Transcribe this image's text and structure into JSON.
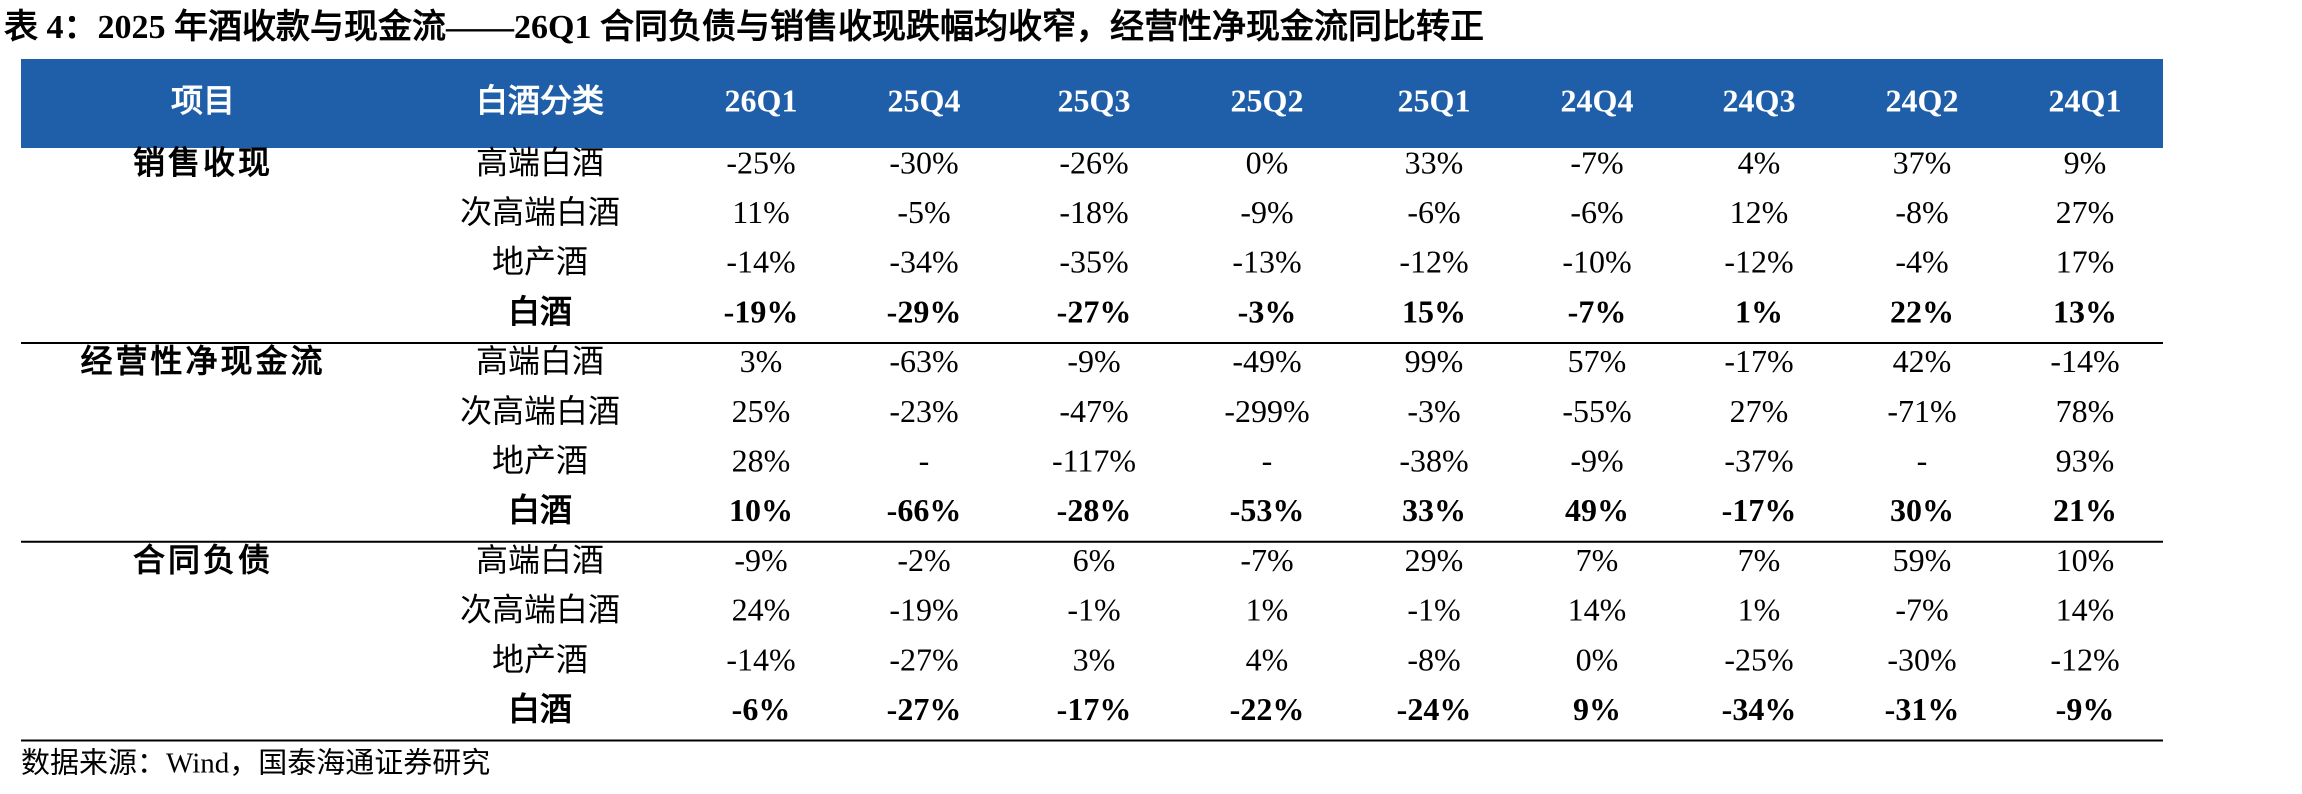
{
  "title": "表 4：2025 年酒收款与现金流——26Q1 合同负债与销售收现跌幅均收窄，经营性净现金流同比转正",
  "table": {
    "columns": [
      "项目",
      "白酒分类",
      "26Q1",
      "25Q4",
      "25Q3",
      "25Q2",
      "25Q1",
      "24Q4",
      "24Q3",
      "24Q2",
      "24Q1"
    ],
    "groups": [
      {
        "name": "销售收现",
        "rows": [
          {
            "category": "高端白酒",
            "values": [
              "-25%",
              "-30%",
              "-26%",
              "0%",
              "33%",
              "-7%",
              "4%",
              "37%",
              "9%"
            ]
          },
          {
            "category": "次高端白酒",
            "values": [
              "11%",
              "-5%",
              "-18%",
              "-9%",
              "-6%",
              "-6%",
              "12%",
              "-8%",
              "27%"
            ]
          },
          {
            "category": "地产酒",
            "values": [
              "-14%",
              "-34%",
              "-35%",
              "-13%",
              "-12%",
              "-10%",
              "-12%",
              "-4%",
              "17%"
            ]
          },
          {
            "category": "白酒",
            "values": [
              "-19%",
              "-29%",
              "-27%",
              "-3%",
              "15%",
              "-7%",
              "1%",
              "22%",
              "13%"
            ]
          }
        ]
      },
      {
        "name": "经营性净现金流",
        "rows": [
          {
            "category": "高端白酒",
            "values": [
              "3%",
              "-63%",
              "-9%",
              "-49%",
              "99%",
              "57%",
              "-17%",
              "42%",
              "-14%"
            ]
          },
          {
            "category": "次高端白酒",
            "values": [
              "25%",
              "-23%",
              "-47%",
              "-299%",
              "-3%",
              "-55%",
              "27%",
              "-71%",
              "78%"
            ]
          },
          {
            "category": "地产酒",
            "values": [
              "28%",
              "-",
              "-117%",
              "-",
              "-38%",
              "-9%",
              "-37%",
              "-",
              "93%"
            ]
          },
          {
            "category": "白酒",
            "values": [
              "10%",
              "-66%",
              "-28%",
              "-53%",
              "33%",
              "49%",
              "-17%",
              "30%",
              "21%"
            ]
          }
        ]
      },
      {
        "name": "合同负债",
        "rows": [
          {
            "category": "高端白酒",
            "values": [
              "-9%",
              "-2%",
              "6%",
              "-7%",
              "29%",
              "7%",
              "7%",
              "59%",
              "10%"
            ]
          },
          {
            "category": "次高端白酒",
            "values": [
              "24%",
              "-19%",
              "-1%",
              "1%",
              "-1%",
              "14%",
              "1%",
              "-7%",
              "14%"
            ]
          },
          {
            "category": "地产酒",
            "values": [
              "-14%",
              "-27%",
              "3%",
              "4%",
              "-8%",
              "0%",
              "-25%",
              "-30%",
              "-12%"
            ]
          },
          {
            "category": "白酒",
            "values": [
              "-6%",
              "-27%",
              "-17%",
              "-22%",
              "-24%",
              "9%",
              "-34%",
              "-31%",
              "-9%"
            ]
          }
        ]
      }
    ]
  },
  "source": "数据来源：Wind，国泰海通证券研究"
}
